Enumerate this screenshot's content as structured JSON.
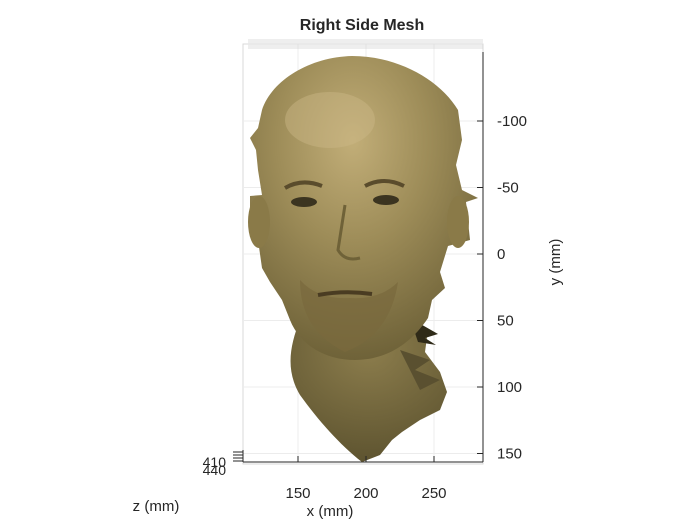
{
  "figure": {
    "title": "Right Side Mesh"
  },
  "chart_data": {
    "type": "surface",
    "title": "Right Side Mesh",
    "xlabel": "x (mm)",
    "ylabel": "y (mm)",
    "zlabel": "z (mm)",
    "x_ticks": [
      150,
      200,
      250
    ],
    "x_tick_labels": [
      "150",
      "200",
      "250"
    ],
    "y_ticks": [
      -100,
      -50,
      0,
      50,
      100,
      150
    ],
    "y_tick_labels": [
      "-100",
      "-50",
      "0",
      "50",
      "100",
      "150"
    ],
    "z_ticks": [
      410,
      440
    ],
    "z_tick_labels": [
      "410",
      "440"
    ],
    "xlim": [
      108,
      288
    ],
    "ylim": [
      -150,
      157
    ],
    "y_direction": "reversed",
    "grid": true,
    "legend": "none",
    "surface_color": "#9a8a55",
    "surface_description_colors": {
      "skin": "#9a8a55",
      "shadow": "#3a3420",
      "highlight": "#c6b27c"
    }
  }
}
